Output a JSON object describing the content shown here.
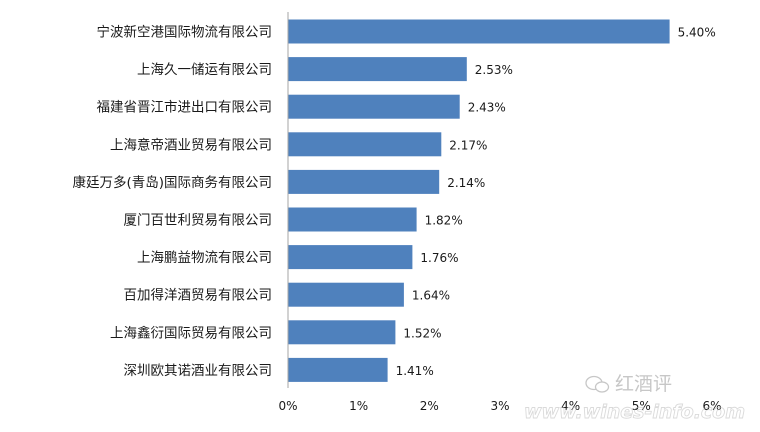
{
  "chart_data": {
    "type": "bar",
    "orientation": "horizontal",
    "categories": [
      "宁波新空港国际物流有限公司",
      "上海久一储运有限公司",
      "福建省晋江市进出口有限公司",
      "上海意帝酒业贸易有限公司",
      "康廷万多(青岛)国际商务有限公司",
      "厦门百世利贸易有限公司",
      "上海鹏益物流有限公司",
      "百加得洋酒贸易有限公司",
      "上海鑫衍国际贸易有限公司",
      "深圳欧其诺酒业有限公司"
    ],
    "values": [
      5.4,
      2.53,
      2.43,
      2.17,
      2.14,
      1.82,
      1.76,
      1.64,
      1.52,
      1.41
    ],
    "value_labels": [
      "5.40%",
      "2.53%",
      "2.43%",
      "2.17%",
      "2.14%",
      "1.82%",
      "1.76%",
      "1.64%",
      "1.52%",
      "1.41%"
    ],
    "xlim": [
      0,
      6
    ],
    "x_ticks": [
      "0%",
      "1%",
      "2%",
      "3%",
      "4%",
      "5%",
      "6%"
    ],
    "bar_color": "#4F81BD",
    "grid": false,
    "title": "",
    "xlabel": "",
    "ylabel": ""
  },
  "watermark": {
    "brand": "红酒评",
    "url": "www.wines-info.com"
  }
}
